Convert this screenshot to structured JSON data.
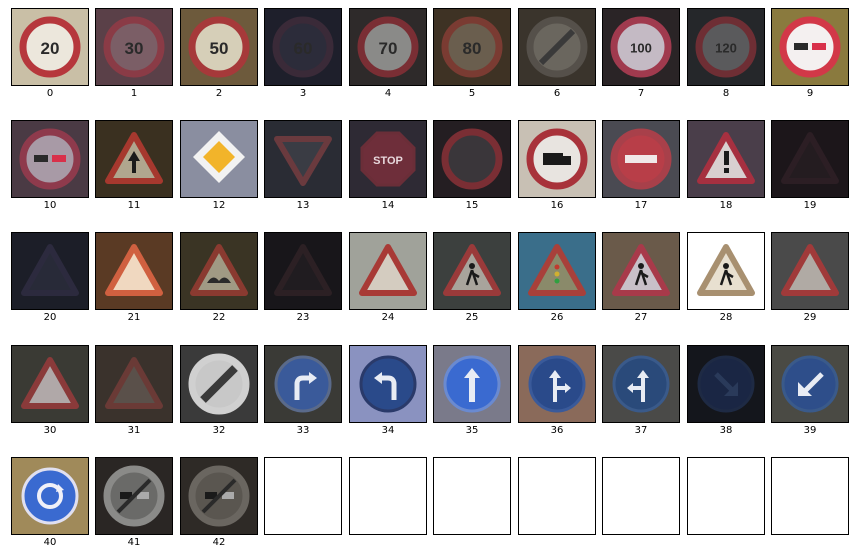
{
  "figure": {
    "tiles": [
      {
        "label": "0",
        "bg": "#c9bfa6",
        "kind": "round",
        "ring": "#b6373c",
        "fill": "#ece7dc",
        "text": "20",
        "glyph": "text"
      },
      {
        "label": "1",
        "bg": "#5a4048",
        "kind": "round",
        "ring": "#8a3b46",
        "fill": "#7b5e66",
        "text": "30",
        "glyph": "text"
      },
      {
        "label": "2",
        "bg": "#6d5a3c",
        "kind": "round",
        "ring": "#a6393a",
        "fill": "#d6cfb8",
        "text": "50",
        "glyph": "text"
      },
      {
        "label": "3",
        "bg": "#1e1f2b",
        "kind": "round",
        "ring": "#3a2a38",
        "fill": "#2c2c3a",
        "text": "60",
        "glyph": "text"
      },
      {
        "label": "4",
        "bg": "#2e2a2a",
        "kind": "round",
        "ring": "#7a2e34",
        "fill": "#8a8a88",
        "text": "70",
        "glyph": "text"
      },
      {
        "label": "5",
        "bg": "#3e3224",
        "kind": "round",
        "ring": "#7a3b32",
        "fill": "#6a5e4e",
        "text": "80",
        "glyph": "text"
      },
      {
        "label": "6",
        "bg": "#3a342c",
        "kind": "round",
        "ring": "#55504a",
        "fill": "#6a665e",
        "text": "",
        "glyph": "end"
      },
      {
        "label": "7",
        "bg": "#2a2426",
        "kind": "round",
        "ring": "#a03a4e",
        "fill": "#c4bac4",
        "text": "100",
        "glyph": "text"
      },
      {
        "label": "8",
        "bg": "#25272a",
        "kind": "round",
        "ring": "#6e2e34",
        "fill": "#5a5a5c",
        "text": "120",
        "glyph": "text"
      },
      {
        "label": "9",
        "bg": "#8a7a3e",
        "kind": "round",
        "ring": "#d23848",
        "fill": "#f4f0f0",
        "text": "",
        "glyph": "nopass"
      },
      {
        "label": "10",
        "bg": "#4a3a44",
        "kind": "round",
        "ring": "#8e3a4c",
        "fill": "#a89aa6",
        "text": "",
        "glyph": "nopass"
      },
      {
        "label": "11",
        "bg": "#3a3020",
        "kind": "tri",
        "ring": "#a6382e",
        "fill": "#b0a68e",
        "text": "",
        "glyph": "arrow"
      },
      {
        "label": "12",
        "bg": "#8a8ea0",
        "kind": "diamond",
        "ring": "#f2f2f2",
        "fill": "#f2b42a",
        "text": "",
        "glyph": "none"
      },
      {
        "label": "13",
        "bg": "#2a2c34",
        "kind": "yield",
        "ring": "#6a3a3e",
        "fill": "#3a3c44",
        "text": "",
        "glyph": "none"
      },
      {
        "label": "14",
        "bg": "#2e2a34",
        "kind": "oct",
        "ring": "#6a2e38",
        "fill": "#6e2e3a",
        "text": "STOP",
        "glyph": "text"
      },
      {
        "label": "15",
        "bg": "#241e22",
        "kind": "round",
        "ring": "#7a2e34",
        "fill": "#3a363a",
        "text": "",
        "glyph": "none"
      },
      {
        "label": "16",
        "bg": "#c8c0b4",
        "kind": "round",
        "ring": "#a8323a",
        "fill": "#e8e4e0",
        "text": "",
        "glyph": "truck"
      },
      {
        "label": "17",
        "bg": "#4a4a52",
        "kind": "round",
        "ring": "#a8404a",
        "fill": "#b83e48",
        "text": "",
        "glyph": "bar"
      },
      {
        "label": "18",
        "bg": "#4a3e4a",
        "kind": "tri",
        "ring": "#a63040",
        "fill": "#d8d0d0",
        "text": "",
        "glyph": "excl"
      },
      {
        "label": "19",
        "bg": "#1c161a",
        "kind": "tri",
        "ring": "#2c1e24",
        "fill": "#241c20",
        "text": "",
        "glyph": "none"
      },
      {
        "label": "20",
        "bg": "#1c1e28",
        "kind": "tri",
        "ring": "#2c2a3e",
        "fill": "#282a38",
        "text": "",
        "glyph": "none"
      },
      {
        "label": "21",
        "bg": "#5a3a24",
        "kind": "tri",
        "ring": "#d06040",
        "fill": "#f0d8c0",
        "text": "",
        "glyph": "none"
      },
      {
        "label": "22",
        "bg": "#3a3424",
        "kind": "tri",
        "ring": "#8a3a30",
        "fill": "#a09a84",
        "text": "",
        "glyph": "bump"
      },
      {
        "label": "23",
        "bg": "#18161a",
        "kind": "tri",
        "ring": "#2c2024",
        "fill": "#201c20",
        "text": "",
        "glyph": "none"
      },
      {
        "label": "24",
        "bg": "#a0a29a",
        "kind": "tri",
        "ring": "#a83a36",
        "fill": "#d4ccc0",
        "text": "",
        "glyph": "none"
      },
      {
        "label": "25",
        "bg": "#3c403e",
        "kind": "tri",
        "ring": "#9a3a3a",
        "fill": "#a8a49c",
        "text": "",
        "glyph": "worker"
      },
      {
        "label": "26",
        "bg": "#3a6e8a",
        "kind": "tri",
        "ring": "#a8403a",
        "fill": "#8a8a6a",
        "text": "",
        "glyph": "light"
      },
      {
        "label": "27",
        "bg": "#6a5a4a",
        "kind": "tri",
        "ring": "#a83a4a",
        "fill": "#c8c0c8",
        "text": "",
        "glyph": "worker"
      },
      {
        "label": "28",
        "bg": "#ffffff",
        "kind": "tri",
        "ring": "#a89070",
        "fill": "#e8e0d0",
        "text": "",
        "glyph": "worker"
      },
      {
        "label": "29",
        "bg": "#4a4a4a",
        "kind": "tri",
        "ring": "#a03a3a",
        "fill": "#b0aaa4",
        "text": "",
        "glyph": "none"
      },
      {
        "label": "30",
        "bg": "#3a3a34",
        "kind": "tri",
        "ring": "#8a3a3a",
        "fill": "#b0a8a8",
        "text": "",
        "glyph": "none"
      },
      {
        "label": "31",
        "bg": "#3a322c",
        "kind": "tri",
        "ring": "#6a3a36",
        "fill": "#5a504a",
        "text": "",
        "glyph": "none"
      },
      {
        "label": "32",
        "bg": "#3a3a3a",
        "kind": "round",
        "ring": "#d0d0d0",
        "fill": "#c8c8c8",
        "text": "",
        "glyph": "endall"
      },
      {
        "label": "33",
        "bg": "#3a3a36",
        "kind": "blue",
        "ring": "#5a6a8a",
        "fill": "#3a5a9a",
        "text": "",
        "glyph": "turnright"
      },
      {
        "label": "34",
        "bg": "#8a92c0",
        "kind": "blue",
        "ring": "#2a3a6a",
        "fill": "#2a4a8a",
        "text": "",
        "glyph": "turnleft"
      },
      {
        "label": "35",
        "bg": "#7a7a8a",
        "kind": "blue",
        "ring": "#6a8ad0",
        "fill": "#3a6ad0",
        "text": "",
        "glyph": "ahead"
      },
      {
        "label": "36",
        "bg": "#8a6a5a",
        "kind": "blue",
        "ring": "#3a5a9a",
        "fill": "#2a4a8a",
        "text": "",
        "glyph": "aheadright"
      },
      {
        "label": "37",
        "bg": "#4a4a48",
        "kind": "blue",
        "ring": "#3a5a8a",
        "fill": "#2a4a7a",
        "text": "",
        "glyph": "aheadleft"
      },
      {
        "label": "38",
        "bg": "#14161c",
        "kind": "blue",
        "ring": "#1e2a44",
        "fill": "#1a2644",
        "text": "",
        "glyph": "keepright"
      },
      {
        "label": "39",
        "bg": "#4a4a44",
        "kind": "blue",
        "ring": "#3a5a8a",
        "fill": "#2e4e8a",
        "text": "",
        "glyph": "keepleft"
      },
      {
        "label": "40",
        "bg": "#a08a5a",
        "kind": "blue",
        "ring": "#e0e0f0",
        "fill": "#3a6ad0",
        "text": "",
        "glyph": "roundabout"
      },
      {
        "label": "41",
        "bg": "#2a2624",
        "kind": "round",
        "ring": "#8a8a88",
        "fill": "#6a6a68",
        "text": "",
        "glyph": "endpass"
      },
      {
        "label": "42",
        "bg": "#2e2a26",
        "kind": "round",
        "ring": "#6a6660",
        "fill": "#5a5650",
        "text": "",
        "glyph": "endpass"
      },
      {
        "label": "",
        "bg": "#ffffff",
        "kind": "empty",
        "ring": "",
        "fill": "",
        "text": "",
        "glyph": "none"
      },
      {
        "label": "",
        "bg": "#ffffff",
        "kind": "empty",
        "ring": "",
        "fill": "",
        "text": "",
        "glyph": "none"
      },
      {
        "label": "",
        "bg": "#ffffff",
        "kind": "empty",
        "ring": "",
        "fill": "",
        "text": "",
        "glyph": "none"
      },
      {
        "label": "",
        "bg": "#ffffff",
        "kind": "empty",
        "ring": "",
        "fill": "",
        "text": "",
        "glyph": "none"
      },
      {
        "label": "",
        "bg": "#ffffff",
        "kind": "empty",
        "ring": "",
        "fill": "",
        "text": "",
        "glyph": "none"
      },
      {
        "label": "",
        "bg": "#ffffff",
        "kind": "empty",
        "ring": "",
        "fill": "",
        "text": "",
        "glyph": "none"
      },
      {
        "label": "",
        "bg": "#ffffff",
        "kind": "empty",
        "ring": "",
        "fill": "",
        "text": "",
        "glyph": "none"
      }
    ]
  }
}
